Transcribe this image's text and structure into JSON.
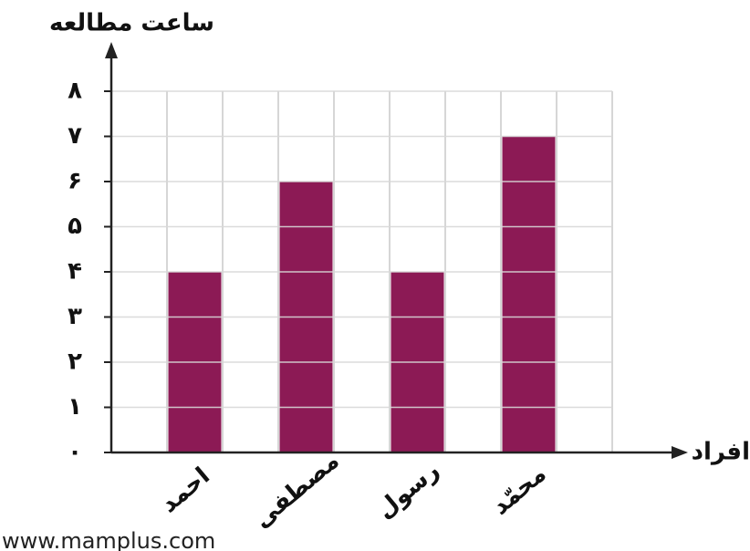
{
  "chart_data": {
    "type": "bar",
    "y_label": "ساعت مطالعه",
    "x_label": "افراد",
    "categories": [
      "احمد",
      "مصطفی",
      "رسول",
      "محمّد"
    ],
    "values": [
      4,
      6,
      4,
      7
    ],
    "color": "#8c1a55",
    "ylim": [
      0,
      8
    ],
    "yticks": [
      {
        "value": 0,
        "label": "۰"
      },
      {
        "value": 1,
        "label": "۱"
      },
      {
        "value": 2,
        "label": "۲"
      },
      {
        "value": 3,
        "label": "۳"
      },
      {
        "value": 4,
        "label": "۴"
      },
      {
        "value": 5,
        "label": "۵"
      },
      {
        "value": 6,
        "label": "۶"
      },
      {
        "value": 7,
        "label": "۷"
      },
      {
        "value": 8,
        "label": "۸"
      }
    ],
    "grid": true,
    "watermark": "www.mamplus.com"
  }
}
